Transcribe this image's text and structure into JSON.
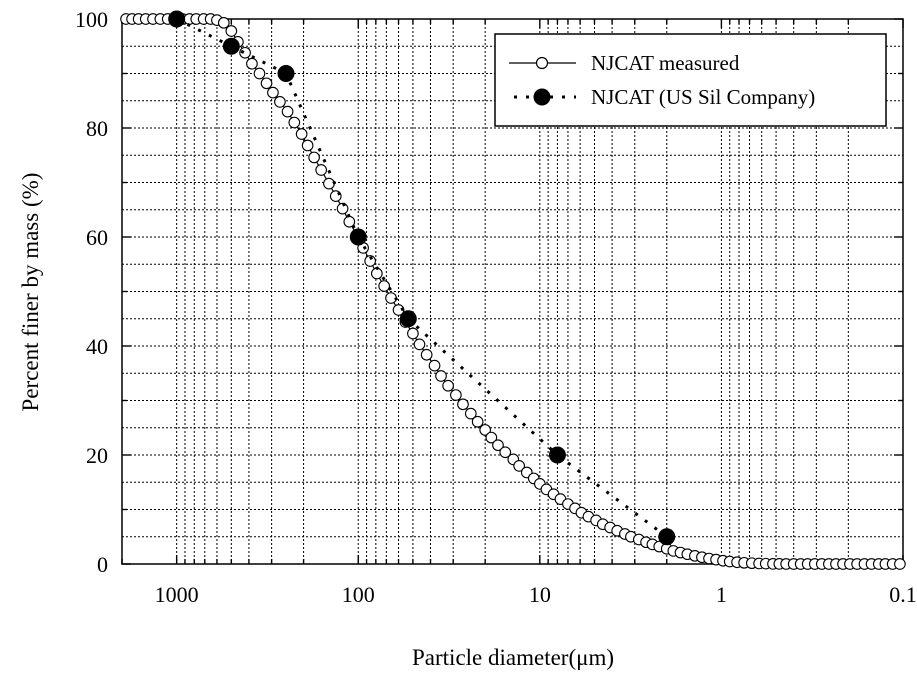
{
  "chart_data": {
    "type": "scatter",
    "xlabel": "Particle diameter(μm)",
    "ylabel": "Percent finer by mass (%)",
    "xscale": "log",
    "x_reversed": true,
    "xlim": [
      2000,
      0.1
    ],
    "ylim": [
      0,
      100
    ],
    "x_ticks": [
      1000,
      100,
      10,
      1,
      0.1
    ],
    "x_tick_labels": [
      "1000",
      "100",
      "10",
      "1",
      "0.1"
    ],
    "y_ticks": [
      0,
      20,
      40,
      60,
      80,
      100
    ],
    "y_tick_labels": [
      "0",
      "20",
      "40",
      "60",
      "80",
      "100"
    ],
    "grid": true,
    "legend_position": "top-right",
    "series": [
      {
        "name": "NJCAT measured",
        "marker": "open-circle",
        "line": "solid",
        "color": "#000000",
        "x": [
          1900,
          1760,
          1620,
          1480,
          1350,
          1230,
          1120,
          1020,
          930,
          850,
          780,
          710,
          650,
          600,
          550,
          500,
          460,
          420,
          385,
          350,
          320,
          295,
          270,
          245,
          225,
          205,
          190,
          175,
          160,
          145,
          133,
          122,
          112,
          102,
          94,
          86,
          79,
          72,
          66,
          60,
          55,
          50,
          46,
          42,
          38,
          35,
          32,
          29,
          26.5,
          24,
          22,
          20,
          18.5,
          17,
          15.5,
          14,
          13,
          11.8,
          10.8,
          10,
          9.2,
          8.4,
          7.7,
          7,
          6.4,
          5.9,
          5.4,
          4.9,
          4.5,
          4.1,
          3.75,
          3.4,
          3.15,
          2.85,
          2.6,
          2.4,
          2.2,
          2,
          1.84,
          1.68,
          1.54,
          1.4,
          1.28,
          1.17,
          1.07,
          0.98,
          0.9,
          0.82,
          0.75,
          0.68,
          0.62,
          0.57,
          0.52,
          0.48,
          0.44,
          0.4,
          0.366,
          0.335,
          0.306,
          0.28,
          0.256,
          0.234,
          0.214,
          0.196,
          0.179,
          0.163,
          0.149,
          0.136,
          0.125,
          0.114,
          0.104
        ],
        "y": [
          100,
          100,
          100,
          100,
          100,
          100,
          100,
          100,
          100,
          100,
          100,
          100,
          100,
          99.8,
          99.3,
          97.8,
          95.8,
          93.8,
          91.8,
          90.0,
          88.2,
          86.5,
          84.8,
          83.0,
          81.0,
          78.9,
          76.8,
          74.6,
          72.3,
          69.8,
          67.5,
          65.2,
          62.8,
          60.4,
          58.0,
          55.6,
          53.3,
          51.0,
          48.8,
          46.6,
          44.4,
          42.3,
          40.3,
          38.4,
          36.4,
          34.5,
          32.7,
          31.0,
          29.3,
          27.6,
          26.1,
          24.6,
          23.2,
          21.8,
          20.5,
          19.2,
          18.0,
          16.8,
          15.7,
          14.7,
          13.7,
          12.8,
          11.9,
          11.0,
          10.2,
          9.4,
          8.7,
          8.0,
          7.3,
          6.7,
          6.1,
          5.5,
          5.0,
          4.5,
          4.0,
          3.6,
          3.2,
          2.8,
          2.4,
          2.1,
          1.8,
          1.5,
          1.25,
          1.0,
          0.8,
          0.6,
          0.45,
          0.32,
          0.22,
          0.15,
          0.1,
          0.06,
          0.03,
          0.02,
          0.01,
          0,
          0,
          0,
          0,
          0,
          0,
          0,
          0,
          0,
          0,
          0,
          0,
          0,
          0,
          0,
          0
        ]
      },
      {
        "name": "NJCAT (US Sil Company)",
        "marker": "filled-circle",
        "line": "dashed",
        "color": "#000000",
        "x": [
          1000,
          500,
          250,
          100,
          53,
          8,
          2
        ],
        "y": [
          100,
          95,
          90,
          60,
          45,
          20,
          5
        ]
      }
    ]
  },
  "legend": {
    "items": [
      "NJCAT measured",
      "NJCAT (US Sil Company)"
    ]
  }
}
